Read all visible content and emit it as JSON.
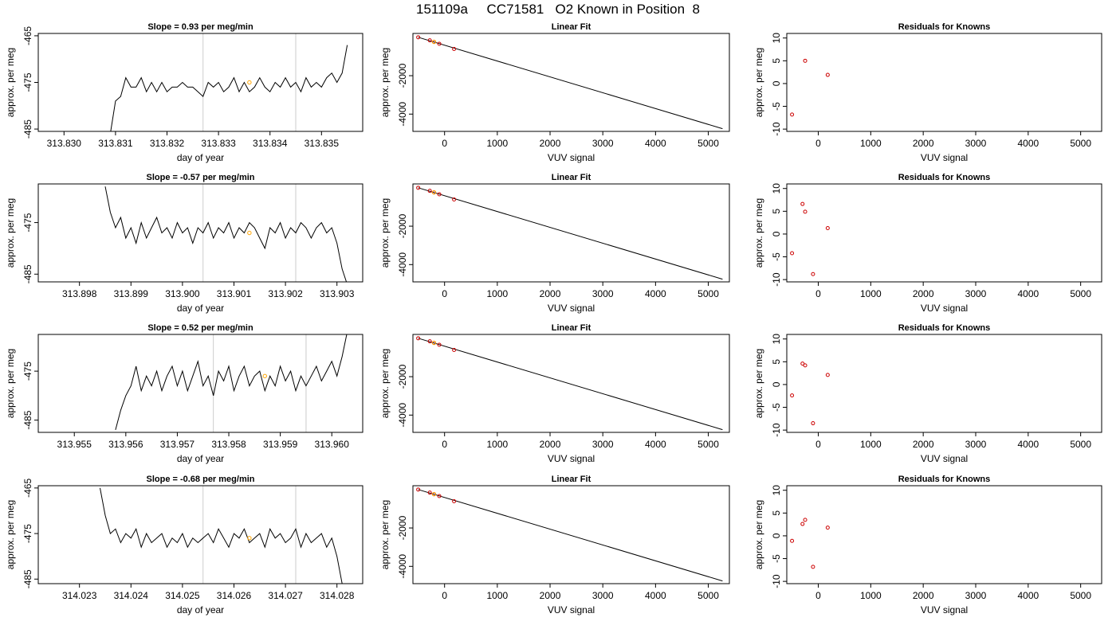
{
  "figure": {
    "title": "151109a     CC71581   O2 Known in Position  8"
  },
  "chart_data": [
    {
      "type": "line",
      "panel": "time-series",
      "title": "Slope =  0.93  per meg/min",
      "xlabel": "day of year",
      "ylabel": "approx. per meg",
      "xlim": [
        313.8295,
        313.8358
      ],
      "ylim": [
        -485.5,
        -464.5
      ],
      "xticks": [
        313.83,
        313.831,
        313.832,
        313.833,
        313.834,
        313.835
      ],
      "xtick_labels": [
        "313.830",
        "313.831",
        "313.832",
        "313.833",
        "313.834",
        "313.835"
      ],
      "yticks": [
        -485,
        -475,
        -465
      ],
      "ytick_labels": [
        "-485",
        "-475",
        "-465"
      ],
      "vlines": [
        313.8327,
        313.8345
      ],
      "x": [
        313.8309,
        313.831,
        313.8311,
        313.8312,
        313.8313,
        313.8314,
        313.8315,
        313.8316,
        313.8317,
        313.8318,
        313.8319,
        313.832,
        313.8321,
        313.8322,
        313.8323,
        313.8324,
        313.8325,
        313.8326,
        313.8327,
        313.8328,
        313.8329,
        313.833,
        313.8331,
        313.8332,
        313.8333,
        313.8334,
        313.8335,
        313.8336,
        313.8337,
        313.8338,
        313.8339,
        313.834,
        313.8341,
        313.8342,
        313.8343,
        313.8344,
        313.8345,
        313.8346,
        313.8347,
        313.8348,
        313.8349,
        313.835,
        313.8351,
        313.8352,
        313.8353,
        313.8354,
        313.8355
      ],
      "y": [
        -486,
        -479,
        -478,
        -474,
        -476,
        -476,
        -474,
        -477,
        -475,
        -477,
        -475,
        -477,
        -476,
        -476,
        -475,
        -476,
        -476,
        -477,
        -478,
        -475,
        -476,
        -475,
        -477,
        -476,
        -474,
        -477,
        -475,
        -477,
        -476,
        -474,
        -476,
        -477,
        -475,
        -476,
        -474,
        -476,
        -475,
        -477,
        -474,
        -476,
        -475,
        -476,
        -474,
        -473,
        -475,
        -473,
        -467
      ],
      "highlight": {
        "x": [
          313.8336
        ],
        "y": [
          -475
        ]
      },
      "colors": {
        "line": "#000000",
        "vline": "#cccccc",
        "highlight": "#ffa500"
      }
    },
    {
      "type": "scatter",
      "panel": "linear-fit",
      "title": "Linear Fit",
      "xlabel": "VUV signal",
      "ylabel": "approx. per meg",
      "xlim": [
        -600,
        5400
      ],
      "ylim": [
        -4900,
        200
      ],
      "xticks": [
        0,
        1000,
        2000,
        3000,
        4000,
        5000
      ],
      "xtick_labels": [
        "0",
        "1000",
        "2000",
        "3000",
        "4000",
        "5000"
      ],
      "yticks": [
        -4000,
        -2000
      ],
      "ytick_labels": [
        "-4000",
        "-2000"
      ],
      "x": [
        -500,
        -280,
        -200,
        -100,
        180
      ],
      "y": [
        0,
        -160,
        -240,
        -340,
        -610
      ],
      "highlight": {
        "x": [
          -200
        ],
        "y": [
          -240
        ]
      },
      "fit_line": {
        "x": [
          -500,
          5270
        ],
        "y": [
          0,
          -4760
        ]
      },
      "colors": {
        "points": "#cc0000",
        "line": "#000000",
        "highlight": "#ffa500"
      }
    },
    {
      "type": "scatter",
      "panel": "residuals",
      "title": "Residuals for Knowns",
      "xlabel": "VUV signal",
      "ylabel": "approx. per meg",
      "xlim": [
        -600,
        5400
      ],
      "ylim": [
        -10.5,
        11
      ],
      "xticks": [
        0,
        1000,
        2000,
        3000,
        4000,
        5000
      ],
      "xtick_labels": [
        "0",
        "1000",
        "2000",
        "3000",
        "4000",
        "5000"
      ],
      "yticks": [
        -10,
        -5,
        0,
        5,
        10
      ],
      "ytick_labels": [
        "-10",
        "-5",
        "0",
        "5",
        "10"
      ],
      "x": [
        -500,
        -250,
        180
      ],
      "y": [
        -6.8,
        5.0,
        1.9
      ],
      "colors": {
        "points": "#cc0000"
      }
    },
    {
      "type": "line",
      "panel": "time-series",
      "title": "Slope =  -0.57  per meg/min",
      "xlabel": "day of year",
      "ylabel": "approx. per meg",
      "xlim": [
        313.8972,
        313.9035
      ],
      "ylim": [
        -486.5,
        -467.5
      ],
      "xticks": [
        313.898,
        313.899,
        313.9,
        313.901,
        313.902,
        313.903
      ],
      "xtick_labels": [
        "313.898",
        "313.899",
        "313.900",
        "313.901",
        "313.902",
        "313.903"
      ],
      "yticks": [
        -485,
        -475
      ],
      "ytick_labels": [
        "-485",
        "-475"
      ],
      "vlines": [
        313.9004,
        313.9022
      ],
      "x": [
        313.8985,
        313.8986,
        313.8987,
        313.8988,
        313.8989,
        313.899,
        313.8991,
        313.8992,
        313.8993,
        313.8994,
        313.8995,
        313.8996,
        313.8997,
        313.8998,
        313.8999,
        313.9,
        313.9001,
        313.9002,
        313.9003,
        313.9004,
        313.9005,
        313.9006,
        313.9007,
        313.9008,
        313.9009,
        313.901,
        313.9011,
        313.9012,
        313.9013,
        313.9014,
        313.9015,
        313.9016,
        313.9017,
        313.9018,
        313.9019,
        313.902,
        313.9021,
        313.9022,
        313.9023,
        313.9024,
        313.9025,
        313.9026,
        313.9027,
        313.9028,
        313.9029,
        313.903,
        313.9031,
        313.9032
      ],
      "y": [
        -468,
        -473,
        -476,
        -474,
        -478,
        -476,
        -479,
        -475,
        -478,
        -476,
        -474,
        -477,
        -476,
        -478,
        -475,
        -477,
        -476,
        -479,
        -476,
        -477,
        -475,
        -478,
        -476,
        -477,
        -475,
        -478,
        -476,
        -477,
        -475,
        -476,
        -478,
        -480,
        -476,
        -477,
        -475,
        -478,
        -476,
        -477,
        -475,
        -476,
        -478,
        -476,
        -475,
        -477,
        -476,
        -479,
        -484,
        -487
      ],
      "highlight": {
        "x": [
          313.9013
        ],
        "y": [
          -477
        ]
      },
      "colors": {
        "line": "#000000",
        "vline": "#cccccc",
        "highlight": "#ffa500"
      }
    },
    {
      "type": "scatter",
      "panel": "linear-fit",
      "title": "Linear Fit",
      "xlabel": "VUV signal",
      "ylabel": "approx. per meg",
      "xlim": [
        -600,
        5400
      ],
      "ylim": [
        -4900,
        200
      ],
      "xticks": [
        0,
        1000,
        2000,
        3000,
        4000,
        5000
      ],
      "xtick_labels": [
        "0",
        "1000",
        "2000",
        "3000",
        "4000",
        "5000"
      ],
      "yticks": [
        -4000,
        -2000
      ],
      "ytick_labels": [
        "-4000",
        "-2000"
      ],
      "x": [
        -500,
        -280,
        -200,
        -100,
        180
      ],
      "y": [
        0,
        -160,
        -240,
        -340,
        -610
      ],
      "highlight": {
        "x": [
          -200
        ],
        "y": [
          -240
        ]
      },
      "fit_line": {
        "x": [
          -500,
          5270
        ],
        "y": [
          0,
          -4760
        ]
      },
      "colors": {
        "points": "#cc0000",
        "line": "#000000",
        "highlight": "#ffa500"
      }
    },
    {
      "type": "scatter",
      "panel": "residuals",
      "title": "Residuals for Knowns",
      "xlabel": "VUV signal",
      "ylabel": "approx. per meg",
      "xlim": [
        -600,
        5400
      ],
      "ylim": [
        -10.5,
        11
      ],
      "xticks": [
        0,
        1000,
        2000,
        3000,
        4000,
        5000
      ],
      "xtick_labels": [
        "0",
        "1000",
        "2000",
        "3000",
        "4000",
        "5000"
      ],
      "yticks": [
        -10,
        -5,
        0,
        5,
        10
      ],
      "ytick_labels": [
        "-10",
        "-5",
        "0",
        "5",
        "10"
      ],
      "x": [
        -500,
        -300,
        -250,
        -100,
        180
      ],
      "y": [
        -4.2,
        6.6,
        4.9,
        -8.8,
        1.3
      ],
      "colors": {
        "points": "#cc0000"
      }
    },
    {
      "type": "line",
      "panel": "time-series",
      "title": "Slope =  0.52  per meg/min",
      "xlabel": "day of year",
      "ylabel": "approx. per meg",
      "xlim": [
        313.9543,
        313.9606
      ],
      "ylim": [
        -487.5,
        -467.5
      ],
      "xticks": [
        313.955,
        313.956,
        313.957,
        313.958,
        313.959,
        313.96
      ],
      "xtick_labels": [
        "313.955",
        "313.956",
        "313.957",
        "313.958",
        "313.959",
        "313.960"
      ],
      "yticks": [
        -485,
        -475
      ],
      "ytick_labels": [
        "-485",
        "-475"
      ],
      "vlines": [
        313.9577,
        313.9595
      ],
      "x": [
        313.9558,
        313.9559,
        313.956,
        313.9561,
        313.9562,
        313.9563,
        313.9564,
        313.9565,
        313.9566,
        313.9567,
        313.9568,
        313.9569,
        313.957,
        313.9571,
        313.9572,
        313.9573,
        313.9574,
        313.9575,
        313.9576,
        313.9577,
        313.9578,
        313.9579,
        313.958,
        313.9581,
        313.9582,
        313.9583,
        313.9584,
        313.9585,
        313.9586,
        313.9587,
        313.9588,
        313.9589,
        313.959,
        313.9591,
        313.9592,
        313.9593,
        313.9594,
        313.9595,
        313.9596,
        313.9597,
        313.9598,
        313.9599,
        313.96,
        313.9601,
        313.9602,
        313.9603
      ],
      "y": [
        -487,
        -483,
        -480,
        -478,
        -474,
        -479,
        -476,
        -478,
        -475,
        -479,
        -476,
        -474,
        -478,
        -475,
        -479,
        -476,
        -473,
        -478,
        -476,
        -480,
        -475,
        -477,
        -474,
        -479,
        -476,
        -474,
        -478,
        -476,
        -475,
        -479,
        -476,
        -478,
        -474,
        -477,
        -475,
        -479,
        -476,
        -478,
        -476,
        -474,
        -477,
        -475,
        -473,
        -476,
        -472,
        -467
      ],
      "highlight": {
        "x": [
          313.9587
        ],
        "y": [
          -476
        ]
      },
      "colors": {
        "line": "#000000",
        "vline": "#cccccc",
        "highlight": "#ffa500"
      }
    },
    {
      "type": "scatter",
      "panel": "linear-fit",
      "title": "Linear Fit",
      "xlabel": "VUV signal",
      "ylabel": "approx. per meg",
      "xlim": [
        -600,
        5400
      ],
      "ylim": [
        -4900,
        200
      ],
      "xticks": [
        0,
        1000,
        2000,
        3000,
        4000,
        5000
      ],
      "xtick_labels": [
        "0",
        "1000",
        "2000",
        "3000",
        "4000",
        "5000"
      ],
      "yticks": [
        -4000,
        -2000
      ],
      "ytick_labels": [
        "-4000",
        "-2000"
      ],
      "x": [
        -500,
        -280,
        -200,
        -100,
        180
      ],
      "y": [
        0,
        -160,
        -240,
        -340,
        -610
      ],
      "highlight": {
        "x": [
          -200
        ],
        "y": [
          -240
        ]
      },
      "fit_line": {
        "x": [
          -500,
          5270
        ],
        "y": [
          0,
          -4760
        ]
      },
      "colors": {
        "points": "#cc0000",
        "line": "#000000",
        "highlight": "#ffa500"
      }
    },
    {
      "type": "scatter",
      "panel": "residuals",
      "title": "Residuals for Knowns",
      "xlabel": "VUV signal",
      "ylabel": "approx. per meg",
      "xlim": [
        -600,
        5400
      ],
      "ylim": [
        -10.5,
        11
      ],
      "xticks": [
        0,
        1000,
        2000,
        3000,
        4000,
        5000
      ],
      "xtick_labels": [
        "0",
        "1000",
        "2000",
        "3000",
        "4000",
        "5000"
      ],
      "yticks": [
        -10,
        -5,
        0,
        5,
        10
      ],
      "ytick_labels": [
        "-10",
        "-5",
        "0",
        "5",
        "10"
      ],
      "x": [
        -500,
        -300,
        -250,
        -100,
        180
      ],
      "y": [
        -2.4,
        4.6,
        4.2,
        -8.5,
        2.1
      ],
      "colors": {
        "points": "#cc0000"
      }
    },
    {
      "type": "line",
      "panel": "time-series",
      "title": "Slope =  -0.68  per meg/min",
      "xlabel": "day of year",
      "ylabel": "approx. per meg",
      "xlim": [
        314.0222,
        314.0285
      ],
      "ylim": [
        -486,
        -464.5
      ],
      "xticks": [
        314.023,
        314.024,
        314.025,
        314.026,
        314.027,
        314.028
      ],
      "xtick_labels": [
        "314.023",
        "314.024",
        "314.025",
        "314.026",
        "314.027",
        "314.028"
      ],
      "yticks": [
        -485,
        -475,
        -465
      ],
      "ytick_labels": [
        "-485",
        "-475",
        "-465"
      ],
      "vlines": [
        314.0254,
        314.0272
      ],
      "x": [
        314.0234,
        314.0235,
        314.0236,
        314.0237,
        314.0238,
        314.0239,
        314.024,
        314.0241,
        314.0242,
        314.0243,
        314.0244,
        314.0245,
        314.0246,
        314.0247,
        314.0248,
        314.0249,
        314.025,
        314.0251,
        314.0252,
        314.0253,
        314.0254,
        314.0255,
        314.0256,
        314.0257,
        314.0258,
        314.0259,
        314.026,
        314.0261,
        314.0262,
        314.0263,
        314.0264,
        314.0265,
        314.0266,
        314.0267,
        314.0268,
        314.0269,
        314.027,
        314.0271,
        314.0272,
        314.0273,
        314.0274,
        314.0275,
        314.0276,
        314.0277,
        314.0278,
        314.0279,
        314.028,
        314.0281
      ],
      "y": [
        -465,
        -471,
        -475,
        -474,
        -477,
        -475,
        -476,
        -474,
        -478,
        -475,
        -477,
        -476,
        -475,
        -478,
        -476,
        -477,
        -475,
        -478,
        -476,
        -477,
        -476,
        -475,
        -477,
        -474,
        -476,
        -478,
        -475,
        -476,
        -474,
        -477,
        -476,
        -475,
        -478,
        -474,
        -476,
        -475,
        -477,
        -476,
        -474,
        -478,
        -475,
        -477,
        -476,
        -475,
        -478,
        -476,
        -480,
        -486
      ],
      "highlight": {
        "x": [
          314.0263
        ],
        "y": [
          -476
        ]
      },
      "colors": {
        "line": "#000000",
        "vline": "#cccccc",
        "highlight": "#ffa500"
      }
    },
    {
      "type": "scatter",
      "panel": "linear-fit",
      "title": "Linear Fit",
      "xlabel": "VUV signal",
      "ylabel": "approx. per meg",
      "xlim": [
        -600,
        5400
      ],
      "ylim": [
        -4900,
        200
      ],
      "xticks": [
        0,
        1000,
        2000,
        3000,
        4000,
        5000
      ],
      "xtick_labels": [
        "0",
        "1000",
        "2000",
        "3000",
        "4000",
        "5000"
      ],
      "yticks": [
        -4000,
        -2000
      ],
      "ytick_labels": [
        "-4000",
        "-2000"
      ],
      "x": [
        -500,
        -280,
        -200,
        -100,
        180
      ],
      "y": [
        0,
        -160,
        -240,
        -340,
        -610
      ],
      "highlight": {
        "x": [
          -200
        ],
        "y": [
          -240
        ]
      },
      "fit_line": {
        "x": [
          -500,
          5270
        ],
        "y": [
          0,
          -4760
        ]
      },
      "colors": {
        "points": "#cc0000",
        "line": "#000000",
        "highlight": "#ffa500"
      }
    },
    {
      "type": "scatter",
      "panel": "residuals",
      "title": "Residuals for Knowns",
      "xlabel": "VUV signal",
      "ylabel": "approx. per meg",
      "xlim": [
        -600,
        5400
      ],
      "ylim": [
        -10.5,
        11
      ],
      "xticks": [
        0,
        1000,
        2000,
        3000,
        4000,
        5000
      ],
      "xtick_labels": [
        "0",
        "1000",
        "2000",
        "3000",
        "4000",
        "5000"
      ],
      "yticks": [
        -10,
        -5,
        0,
        5,
        10
      ],
      "ytick_labels": [
        "-10",
        "-5",
        "0",
        "5",
        "10"
      ],
      "x": [
        -500,
        -300,
        -250,
        -100,
        180
      ],
      "y": [
        -1.1,
        2.6,
        3.5,
        -6.8,
        1.8
      ],
      "colors": {
        "points": "#cc0000"
      }
    }
  ]
}
